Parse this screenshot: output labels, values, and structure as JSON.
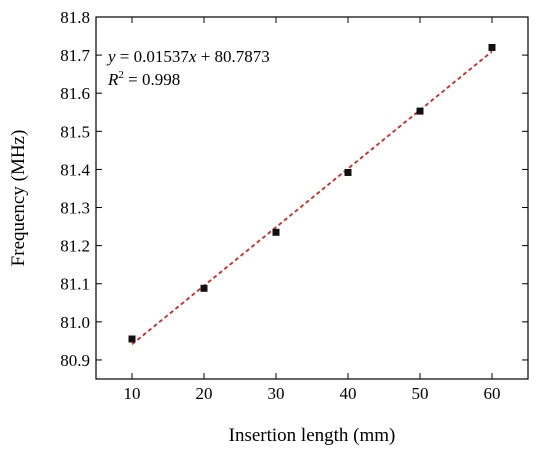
{
  "chart_data": {
    "type": "scatter",
    "xlabel": "Insertion length (mm)",
    "ylabel": "Frequency (MHz)",
    "xlim": [
      5,
      65
    ],
    "ylim": [
      80.85,
      81.8
    ],
    "x_ticks": [
      10,
      20,
      30,
      40,
      50,
      60
    ],
    "y_ticks": [
      80.9,
      81.0,
      81.1,
      81.2,
      81.3,
      81.4,
      81.5,
      81.6,
      81.7,
      81.8
    ],
    "x_tick_labels": [
      "10",
      "20",
      "30",
      "40",
      "50",
      "60"
    ],
    "y_tick_labels": [
      "80.9",
      "81.0",
      "81.1",
      "81.2",
      "81.3",
      "81.4",
      "81.5",
      "81.6",
      "81.7",
      "81.8"
    ],
    "grid": false,
    "series": [
      {
        "type": "scatter",
        "marker": "square",
        "color": "#111111",
        "x": [
          10,
          20,
          30,
          40,
          50,
          60
        ],
        "y": [
          80.955,
          81.088,
          81.235,
          81.392,
          81.553,
          81.72
        ]
      },
      {
        "type": "line",
        "style": "dashed",
        "color": "#e02020",
        "slope": 0.01537,
        "intercept": 80.7873,
        "x_range": [
          10,
          60
        ]
      }
    ],
    "annotations": {
      "equation": {
        "y": "y",
        "eq": " = 0.01537",
        "x": "x",
        "rest": " + 80.7873"
      },
      "r2": {
        "r": "R",
        "sup": "2",
        "rest": " = 0.998"
      }
    }
  }
}
